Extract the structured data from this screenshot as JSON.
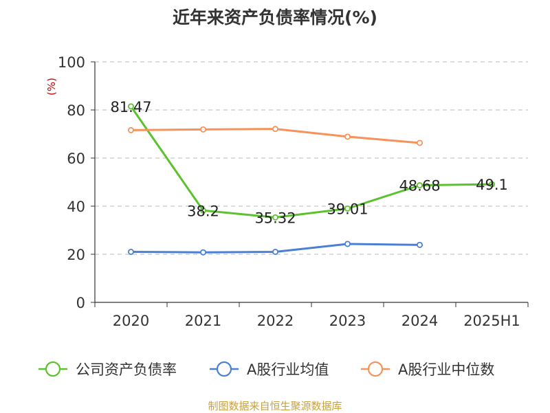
{
  "chart_data": {
    "type": "line",
    "title": "近年来资产负债率情况(%)",
    "unit_label": "(%)",
    "categories": [
      "2020",
      "2021",
      "2022",
      "2023",
      "2024",
      "2025H1"
    ],
    "ylim": [
      0,
      100
    ],
    "yticks": [
      0,
      20,
      40,
      60,
      80,
      100
    ],
    "grid": true,
    "legend_position": "bottom",
    "series": [
      {
        "name": "公司资产负债率",
        "color": "#5ac22c",
        "values": [
          81.47,
          38.2,
          35.32,
          39.01,
          48.68,
          49.1
        ],
        "labels": [
          "81.47",
          "38.2",
          "35.32",
          "39.01",
          "48.68",
          "49.1"
        ]
      },
      {
        "name": "A股行业均值",
        "color": "#4a7fd6",
        "values": [
          21.0,
          20.8,
          21.0,
          24.3,
          23.9,
          null
        ]
      },
      {
        "name": "A股行业中位数",
        "color": "#f5935a",
        "values": [
          71.6,
          71.9,
          72.1,
          68.9,
          66.3,
          null
        ]
      }
    ]
  },
  "footer": {
    "source": "制图数据来自恒生聚源数据库"
  }
}
